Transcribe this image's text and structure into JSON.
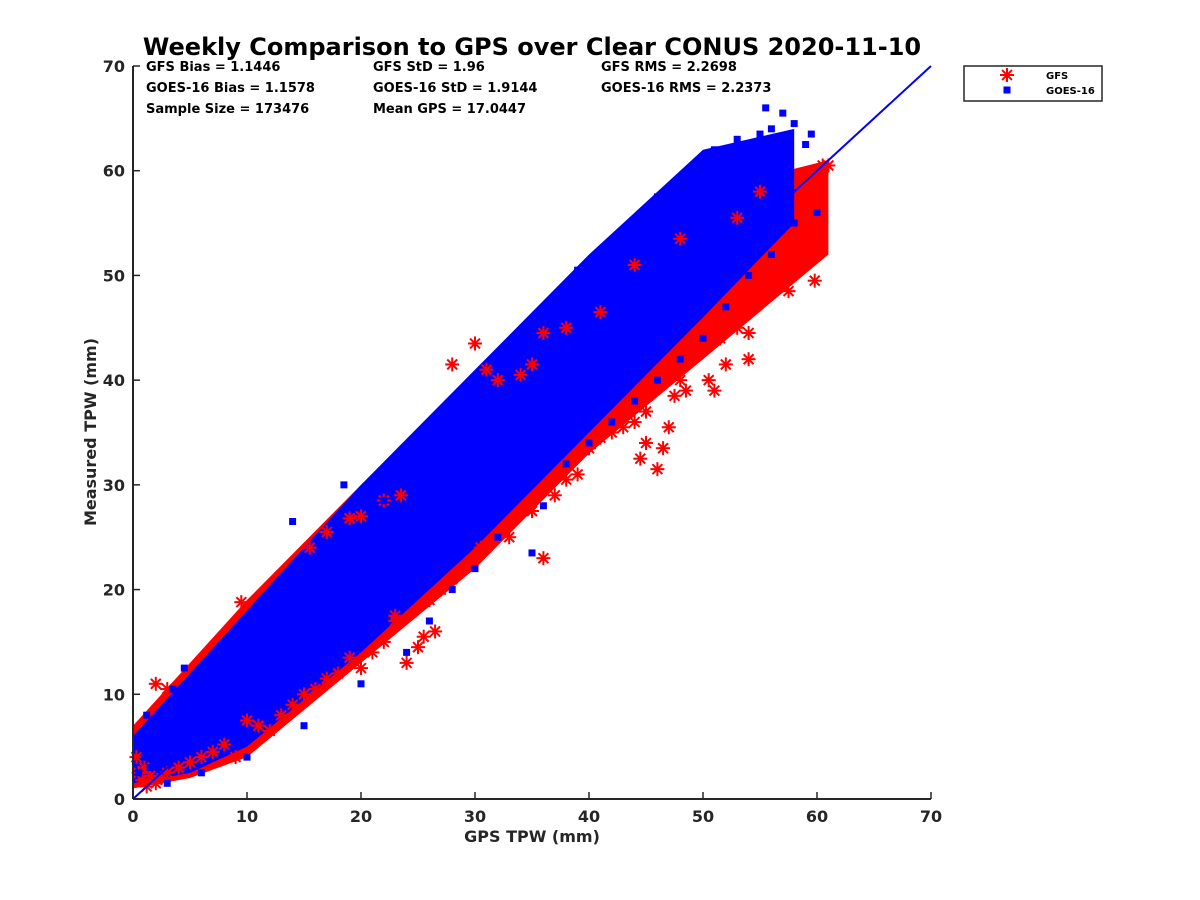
{
  "chart_data": {
    "type": "scatter",
    "title": "Weekly Comparison to GPS over Clear CONUS 2020-11-10",
    "xlabel": "GPS TPW (mm)",
    "ylabel": "Measured TPW (mm)",
    "xlim": [
      0,
      70
    ],
    "ylim": [
      0,
      70
    ],
    "xticks": [
      "0",
      "10",
      "20",
      "30",
      "40",
      "50",
      "60",
      "70"
    ],
    "yticks": [
      "0",
      "10",
      "20",
      "30",
      "40",
      "50",
      "60",
      "70"
    ],
    "grid": false,
    "legend_position": "outside-top-right",
    "stats": {
      "gfs_bias": "GFS Bias = 1.1446",
      "goes_bias": "GOES-16 Bias = 1.1578",
      "sample_size": "Sample Size = 173476",
      "gfs_std": "GFS StD = 1.96",
      "goes_std": "GOES-16 StD = 1.9144",
      "mean_gps": "Mean GPS = 17.0447",
      "gfs_rms": "GFS RMS = 2.2698",
      "goes_rms": "GOES-16 RMS = 2.2373"
    },
    "reference_line": {
      "x": [
        0,
        70
      ],
      "y": [
        0,
        70
      ],
      "color": "#0000ff"
    },
    "series": [
      {
        "name": "GFS",
        "marker": "asterisk",
        "color": "#ff0000",
        "points": [
          [
            0.3,
            4.0
          ],
          [
            0.5,
            2.5
          ],
          [
            0.8,
            1.8
          ],
          [
            1.0,
            3.0
          ],
          [
            1.2,
            1.2
          ],
          [
            1.5,
            2.2
          ],
          [
            2.0,
            1.5
          ],
          [
            2.5,
            2.0
          ],
          [
            3.0,
            2.5
          ],
          [
            2.0,
            11.0
          ],
          [
            3.0,
            10.5
          ],
          [
            4.0,
            3.0
          ],
          [
            5.0,
            3.5
          ],
          [
            6.0,
            4.0
          ],
          [
            7.0,
            4.5
          ],
          [
            8.0,
            5.2
          ],
          [
            9.0,
            4.0
          ],
          [
            9.5,
            18.8
          ],
          [
            10.0,
            7.5
          ],
          [
            11.0,
            7.0
          ],
          [
            12.0,
            6.5
          ],
          [
            13.0,
            8.0
          ],
          [
            14.0,
            9.0
          ],
          [
            15.0,
            10.0
          ],
          [
            16.0,
            10.5
          ],
          [
            17.0,
            11.5
          ],
          [
            18.0,
            12.0
          ],
          [
            19.0,
            13.5
          ],
          [
            20.0,
            12.5
          ],
          [
            21.0,
            14.0
          ],
          [
            22.0,
            15.0
          ],
          [
            23.0,
            17.0
          ],
          [
            24.0,
            13.0
          ],
          [
            25.0,
            14.5
          ],
          [
            25.5,
            15.5
          ],
          [
            26.0,
            19.0
          ],
          [
            26.5,
            16.0
          ],
          [
            23.0,
            17.5
          ],
          [
            15.5,
            24.0
          ],
          [
            17.0,
            25.5
          ],
          [
            19.0,
            26.8
          ],
          [
            20.0,
            27.0
          ],
          [
            22.0,
            28.5
          ],
          [
            23.5,
            29.0
          ],
          [
            27.0,
            20.0
          ],
          [
            28.0,
            21.0
          ],
          [
            28.0,
            41.5
          ],
          [
            29.0,
            22.0
          ],
          [
            30.0,
            43.5
          ],
          [
            30.5,
            24.0
          ],
          [
            31.0,
            41.0
          ],
          [
            32.0,
            40.0
          ],
          [
            33.0,
            25.0
          ],
          [
            34.0,
            40.5
          ],
          [
            35.0,
            27.5
          ],
          [
            35.0,
            41.5
          ],
          [
            36.0,
            23.0
          ],
          [
            36.0,
            44.5
          ],
          [
            37.0,
            29.0
          ],
          [
            38.0,
            30.5
          ],
          [
            39.0,
            31.0
          ],
          [
            40.0,
            33.5
          ],
          [
            41.0,
            34.5
          ],
          [
            42.0,
            35.0
          ],
          [
            43.0,
            35.5
          ],
          [
            44.0,
            36.0
          ],
          [
            44.5,
            32.5
          ],
          [
            45.0,
            37.0
          ],
          [
            45.0,
            34.0
          ],
          [
            46.0,
            31.5
          ],
          [
            46.5,
            33.5
          ],
          [
            47.0,
            35.5
          ],
          [
            47.5,
            38.5
          ],
          [
            48.0,
            40.0
          ],
          [
            48.5,
            39.0
          ],
          [
            49.0,
            42.0
          ],
          [
            50.0,
            43.0
          ],
          [
            50.5,
            40.0
          ],
          [
            51.0,
            39.0
          ],
          [
            51.5,
            44.0
          ],
          [
            52.0,
            41.5
          ],
          [
            53.0,
            45.0
          ],
          [
            54.0,
            42.0
          ],
          [
            54.0,
            44.5
          ],
          [
            54.5,
            47.5
          ],
          [
            55.0,
            48.0
          ],
          [
            56.0,
            50.0
          ],
          [
            57.0,
            52.0
          ],
          [
            57.5,
            48.5
          ],
          [
            58.0,
            50.5
          ],
          [
            58.5,
            54.0
          ],
          [
            59.0,
            56.0
          ],
          [
            59.5,
            57.5
          ],
          [
            59.8,
            49.5
          ],
          [
            60.0,
            59.0
          ],
          [
            60.5,
            60.5
          ],
          [
            61.0,
            60.5
          ],
          [
            55.0,
            58.0
          ],
          [
            53.0,
            55.5
          ],
          [
            48.0,
            53.5
          ],
          [
            44.0,
            51.0
          ],
          [
            41.0,
            46.5
          ],
          [
            38.0,
            45.0
          ]
        ]
      },
      {
        "name": "GOES-16",
        "marker": "square",
        "color": "#0000ff",
        "points": [
          [
            0.5,
            2.5
          ],
          [
            1.0,
            4.0
          ],
          [
            1.2,
            8.0
          ],
          [
            1.5,
            3.0
          ],
          [
            2.0,
            5.0
          ],
          [
            2.5,
            7.5
          ],
          [
            3.0,
            6.0
          ],
          [
            3.5,
            10.5
          ],
          [
            4.0,
            8.0
          ],
          [
            4.5,
            12.5
          ],
          [
            5.0,
            9.0
          ],
          [
            5.5,
            7.0
          ],
          [
            6.0,
            11.0
          ],
          [
            7.0,
            12.0
          ],
          [
            8.0,
            13.5
          ],
          [
            9.0,
            10.0
          ],
          [
            10.0,
            16.0
          ],
          [
            11.0,
            17.0
          ],
          [
            12.0,
            13.0
          ],
          [
            13.0,
            20.0
          ],
          [
            14.0,
            26.5
          ],
          [
            15.0,
            19.5
          ],
          [
            16.0,
            21.0
          ],
          [
            17.0,
            22.0
          ],
          [
            18.0,
            24.0
          ],
          [
            18.5,
            30.0
          ],
          [
            19.0,
            23.0
          ],
          [
            20.0,
            25.0
          ],
          [
            21.0,
            27.0
          ],
          [
            22.0,
            28.5
          ],
          [
            23.0,
            32.0
          ],
          [
            24.0,
            30.0
          ],
          [
            25.0,
            33.0
          ],
          [
            26.0,
            35.0
          ],
          [
            27.0,
            34.5
          ],
          [
            28.0,
            37.0
          ],
          [
            29.0,
            36.5
          ],
          [
            30.0,
            38.0
          ],
          [
            31.0,
            40.0
          ],
          [
            32.0,
            41.5
          ],
          [
            33.0,
            42.0
          ],
          [
            34.0,
            44.0
          ],
          [
            35.0,
            45.5
          ],
          [
            36.0,
            46.0
          ],
          [
            37.0,
            47.0
          ],
          [
            38.0,
            48.5
          ],
          [
            39.0,
            50.5
          ],
          [
            40.0,
            49.0
          ],
          [
            41.0,
            52.0
          ],
          [
            42.0,
            53.0
          ],
          [
            43.0,
            54.0
          ],
          [
            44.0,
            55.0
          ],
          [
            45.0,
            56.0
          ],
          [
            46.0,
            57.5
          ],
          [
            47.0,
            55.5
          ],
          [
            48.0,
            59.0
          ],
          [
            49.0,
            58.0
          ],
          [
            50.0,
            60.5
          ],
          [
            51.0,
            62.0
          ],
          [
            52.0,
            61.5
          ],
          [
            53.0,
            63.0
          ],
          [
            54.0,
            60.0
          ],
          [
            55.0,
            63.5
          ],
          [
            55.5,
            66.0
          ],
          [
            56.0,
            64.0
          ],
          [
            56.5,
            62.0
          ],
          [
            57.0,
            65.5
          ],
          [
            57.5,
            63.0
          ],
          [
            58.0,
            64.5
          ],
          [
            59.0,
            62.5
          ],
          [
            59.5,
            63.5
          ],
          [
            60.0,
            56.0
          ],
          [
            35.0,
            23.5
          ],
          [
            36.0,
            28.0
          ],
          [
            38.0,
            32.0
          ],
          [
            40.0,
            34.0
          ],
          [
            42.0,
            36.0
          ],
          [
            44.0,
            38.0
          ],
          [
            46.0,
            40.0
          ],
          [
            48.0,
            42.0
          ],
          [
            50.0,
            44.0
          ],
          [
            52.0,
            47.0
          ],
          [
            54.0,
            50.0
          ],
          [
            56.0,
            52.0
          ],
          [
            58.0,
            55.0
          ],
          [
            24.0,
            14.0
          ],
          [
            26.0,
            17.0
          ],
          [
            28.0,
            20.0
          ],
          [
            30.0,
            22.0
          ],
          [
            32.0,
            25.0
          ],
          [
            20.0,
            11.0
          ],
          [
            15.0,
            7.0
          ],
          [
            10.0,
            4.0
          ],
          [
            6.0,
            2.5
          ],
          [
            3.0,
            1.5
          ]
        ]
      }
    ],
    "bands": [
      {
        "color": "#ff0000",
        "upper": [
          [
            0,
            7
          ],
          [
            5,
            13
          ],
          [
            10,
            19
          ],
          [
            20,
            30
          ],
          [
            30,
            40
          ],
          [
            40,
            50
          ],
          [
            50,
            58
          ],
          [
            61,
            61
          ]
        ],
        "lower": [
          [
            0,
            1
          ],
          [
            5,
            2
          ],
          [
            10,
            4
          ],
          [
            20,
            13
          ],
          [
            30,
            22
          ],
          [
            40,
            33
          ],
          [
            50,
            42
          ],
          [
            61,
            52
          ]
        ]
      },
      {
        "color": "#0000ff",
        "upper": [
          [
            0,
            6
          ],
          [
            5,
            12
          ],
          [
            10,
            18
          ],
          [
            20,
            30
          ],
          [
            30,
            41
          ],
          [
            40,
            52
          ],
          [
            50,
            62
          ],
          [
            58,
            64
          ]
        ],
        "lower": [
          [
            0,
            1.5
          ],
          [
            5,
            2.5
          ],
          [
            10,
            5
          ],
          [
            20,
            14
          ],
          [
            30,
            24
          ],
          [
            40,
            35
          ],
          [
            50,
            46
          ],
          [
            58,
            55
          ]
        ]
      }
    ]
  }
}
